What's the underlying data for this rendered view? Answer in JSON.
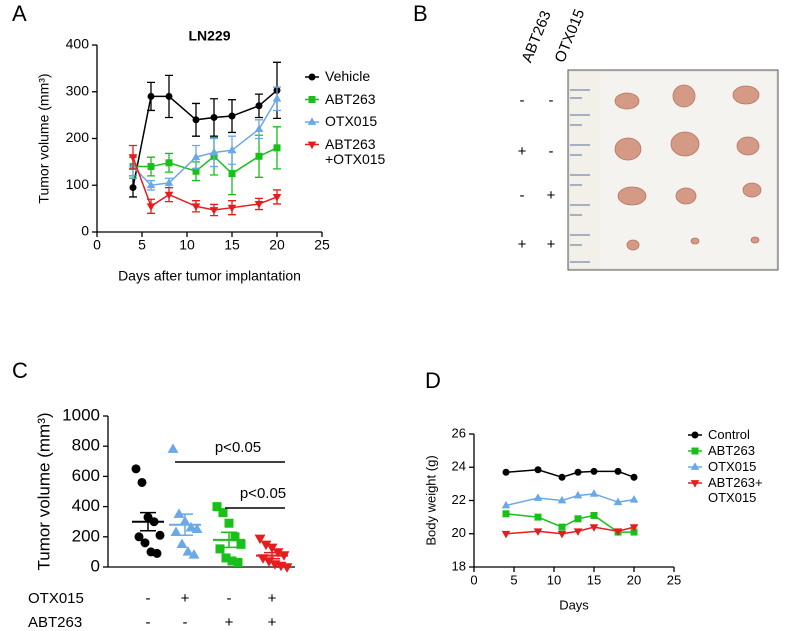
{
  "chart_data": [
    {
      "type": "line",
      "panel_label": "A",
      "title": "LN229",
      "xlabel": "Days after tumor implantation",
      "ylabel": "Tumor volume (mm³)",
      "x": [
        4,
        6,
        8,
        11,
        13,
        15,
        18,
        20
      ],
      "xlim": [
        0,
        25
      ],
      "xticks": [
        0,
        5,
        10,
        15,
        20,
        25
      ],
      "ylim": [
        0,
        400
      ],
      "yticks": [
        0,
        100,
        200,
        300,
        400
      ],
      "legend": "right",
      "series": [
        {
          "name": "Vehicle",
          "color": "#000000",
          "marker": "circle",
          "values": [
            95,
            290,
            290,
            240,
            245,
            248,
            270,
            303
          ],
          "errors": [
            20,
            30,
            45,
            35,
            40,
            35,
            25,
            60
          ]
        },
        {
          "name": "ABT263",
          "color": "#19c019",
          "marker": "square",
          "values": [
            140,
            140,
            148,
            130,
            162,
            125,
            162,
            180
          ],
          "errors": [
            20,
            20,
            20,
            20,
            40,
            45,
            45,
            45
          ]
        },
        {
          "name": "OTX015",
          "color": "#6aa8e8",
          "marker": "triangle",
          "values": [
            140,
            100,
            105,
            160,
            170,
            175,
            220,
            285
          ],
          "errors": [
            25,
            10,
            10,
            25,
            30,
            30,
            20,
            25
          ]
        },
        {
          "name": "ABT263\n+OTX015",
          "color": "#e81c1c",
          "marker": "triangle-down",
          "values": [
            160,
            55,
            80,
            55,
            47,
            52,
            60,
            75
          ],
          "errors": [
            25,
            15,
            15,
            12,
            12,
            15,
            12,
            15
          ]
        }
      ]
    },
    {
      "type": "strip",
      "panel_label": "C",
      "ylabel": "Tumor volume (mm³)",
      "ylim": [
        0,
        1000
      ],
      "yticks": [
        0,
        200,
        400,
        600,
        800,
        1000
      ],
      "series": [
        {
          "color": "#000000",
          "marker": "circle",
          "values": [
            650,
            560,
            330,
            300,
            210,
            200,
            160,
            100,
            90
          ],
          "mean": 300,
          "error": 60
        },
        {
          "color": "#6aa8e8",
          "marker": "triangle",
          "values": [
            780,
            350,
            300,
            260,
            250,
            230,
            150,
            100,
            80
          ],
          "mean": 280,
          "error": 70
        },
        {
          "color": "#19c019",
          "marker": "square",
          "values": [
            400,
            360,
            290,
            200,
            150,
            120,
            60,
            40,
            30
          ],
          "mean": 180,
          "error": 50
        },
        {
          "color": "#e81c1c",
          "marker": "triangle-down",
          "values": [
            190,
            150,
            130,
            100,
            80,
            60,
            40,
            20,
            10,
            0
          ],
          "mean": 75,
          "error": 20
        }
      ],
      "conditions": [
        {
          "label": "OTX015",
          "signs": [
            "-",
            "+",
            "-",
            "+"
          ]
        },
        {
          "label": "ABT263",
          "signs": [
            "-",
            "-",
            "+",
            "+"
          ]
        }
      ],
      "annotations": [
        "p<0.05",
        "p<0.05"
      ]
    },
    {
      "type": "line",
      "panel_label": "D",
      "xlabel": "Days",
      "ylabel": "Body weight (g)",
      "x": [
        4,
        8,
        11,
        13,
        15,
        18,
        20
      ],
      "xlim": [
        0,
        25
      ],
      "xticks": [
        0,
        5,
        10,
        15,
        20,
        25
      ],
      "ylim": [
        18,
        26
      ],
      "yticks": [
        18,
        20,
        22,
        24,
        26
      ],
      "legend": "right",
      "series": [
        {
          "name": "Control",
          "color": "#000000",
          "marker": "circle",
          "values": [
            23.7,
            23.85,
            23.4,
            23.7,
            23.75,
            23.75,
            23.4
          ]
        },
        {
          "name": "ABT263",
          "color": "#19c019",
          "marker": "square",
          "values": [
            21.2,
            21.0,
            20.4,
            20.9,
            21.1,
            20.1,
            20.1
          ]
        },
        {
          "name": "OTX015",
          "color": "#6aa8e8",
          "marker": "triangle",
          "values": [
            21.7,
            22.15,
            22.0,
            22.3,
            22.4,
            21.9,
            22.05
          ]
        },
        {
          "name": "ABT263+\nOTX015",
          "color": "#e81c1c",
          "marker": "triangle-down",
          "values": [
            20.0,
            20.15,
            20.0,
            20.15,
            20.4,
            20.15,
            20.4
          ]
        }
      ]
    }
  ],
  "photo_panel": {
    "panel_label": "B",
    "column_labels": [
      "ABT263",
      "OTX015"
    ],
    "rows": [
      [
        "-",
        "-"
      ],
      [
        "+",
        "-"
      ],
      [
        "-",
        "+"
      ],
      [
        "+",
        "+"
      ]
    ]
  }
}
